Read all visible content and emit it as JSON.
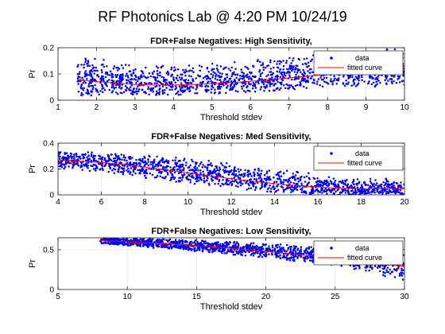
{
  "figure": {
    "title": "RF Photonics Lab @ 4:20 PM 10/24/19",
    "background": "#ffffff",
    "data_color": "#0000ff",
    "fit_color": "#ff0000"
  },
  "chart_data": [
    {
      "type": "scatter",
      "title": "FDR+False Negatives: High Sensitivity,",
      "xlabel": "Threshold stdev",
      "ylabel": "Pr",
      "xlim": [
        1,
        10
      ],
      "ylim": [
        0,
        0.2
      ],
      "xticks": [
        1,
        2,
        3,
        4,
        5,
        6,
        7,
        8,
        9,
        10
      ],
      "yticks": [
        0,
        0.1,
        0.2
      ],
      "grid": true,
      "legend": {
        "placement": "top-right",
        "entries": [
          "data",
          "fitted curve"
        ]
      },
      "series": [
        {
          "name": "data",
          "kind": "points",
          "x_range": [
            1.5,
            10
          ],
          "envelope_x": [
            1.5,
            2,
            3,
            4,
            5,
            6,
            7,
            8,
            9,
            10
          ],
          "low": [
            0.015,
            0.02,
            0.02,
            0.02,
            0.025,
            0.03,
            0.04,
            0.05,
            0.05,
            0.05
          ],
          "high": [
            0.16,
            0.16,
            0.14,
            0.14,
            0.14,
            0.15,
            0.17,
            0.18,
            0.19,
            0.2
          ],
          "center": [
            0.08,
            0.075,
            0.06,
            0.06,
            0.07,
            0.08,
            0.095,
            0.11,
            0.115,
            0.12
          ]
        },
        {
          "name": "fitted curve",
          "kind": "line",
          "x": [
            1.5,
            2,
            2.5,
            3,
            3.5,
            4,
            4.5,
            5,
            5.5,
            6,
            6.5,
            7,
            7.5,
            8,
            8.5,
            9,
            9.5,
            10
          ],
          "y": [
            0.078,
            0.071,
            0.065,
            0.06,
            0.058,
            0.058,
            0.06,
            0.063,
            0.067,
            0.072,
            0.078,
            0.085,
            0.092,
            0.099,
            0.106,
            0.112,
            0.117,
            0.122
          ]
        }
      ]
    },
    {
      "type": "scatter",
      "title": "FDR+False Negatives: Med Sensitivity,",
      "xlabel": "Threshold stdev",
      "ylabel": "Pr",
      "xlim": [
        4,
        20
      ],
      "ylim": [
        0,
        0.4
      ],
      "xticks": [
        4,
        6,
        8,
        10,
        12,
        14,
        16,
        18,
        20
      ],
      "yticks": [
        0,
        0.2,
        0.4
      ],
      "ytick_labels": [
        "0",
        "0.2",
        "0.4"
      ],
      "grid": true,
      "legend": {
        "placement": "top-right",
        "entries": [
          "data",
          "fitted curve"
        ]
      },
      "series": [
        {
          "name": "data",
          "kind": "points",
          "x_range": [
            4,
            20
          ],
          "envelope_x": [
            4,
            6,
            8,
            10,
            12,
            14,
            16,
            18,
            20
          ],
          "low": [
            0.2,
            0.18,
            0.13,
            0.09,
            0.05,
            0.02,
            0.0,
            0.0,
            0.0
          ],
          "high": [
            0.33,
            0.33,
            0.31,
            0.28,
            0.25,
            0.2,
            0.16,
            0.14,
            0.12
          ],
          "center": [
            0.27,
            0.25,
            0.22,
            0.18,
            0.14,
            0.1,
            0.07,
            0.05,
            0.05
          ]
        },
        {
          "name": "fitted curve",
          "kind": "line",
          "x": [
            4,
            5,
            6,
            7,
            8,
            9,
            10,
            11,
            12,
            13,
            14,
            15,
            16,
            17,
            18,
            19,
            20
          ],
          "y": [
            0.265,
            0.26,
            0.25,
            0.235,
            0.215,
            0.193,
            0.17,
            0.147,
            0.125,
            0.105,
            0.087,
            0.072,
            0.06,
            0.052,
            0.048,
            0.048,
            0.052
          ]
        }
      ]
    },
    {
      "type": "scatter",
      "title": "FDR+False Negatives: Low Sensitivity,",
      "xlabel": "Threshold stdev",
      "ylabel": "Pr",
      "xlim": [
        5,
        30
      ],
      "ylim": [
        0,
        0.65
      ],
      "xticks": [
        5,
        10,
        15,
        20,
        25,
        30
      ],
      "yticks": [
        0,
        0.5
      ],
      "grid": true,
      "legend": {
        "placement": "top-right",
        "entries": [
          "data",
          "fitted curve"
        ]
      },
      "series": [
        {
          "name": "data",
          "kind": "points",
          "x_range": [
            8,
            30
          ],
          "envelope_x": [
            8,
            10,
            15,
            20,
            25,
            28,
            30
          ],
          "low": [
            0.57,
            0.55,
            0.48,
            0.4,
            0.3,
            0.2,
            0.05
          ],
          "high": [
            0.65,
            0.65,
            0.62,
            0.58,
            0.52,
            0.5,
            0.48
          ],
          "center": [
            0.61,
            0.6,
            0.55,
            0.49,
            0.41,
            0.35,
            0.3
          ]
        },
        {
          "name": "fitted curve",
          "kind": "line",
          "x": [
            8,
            10,
            12,
            14,
            16,
            18,
            20,
            22,
            24,
            26,
            28,
            30
          ],
          "y": [
            0.615,
            0.6,
            0.583,
            0.562,
            0.538,
            0.511,
            0.48,
            0.446,
            0.41,
            0.372,
            0.331,
            0.29
          ]
        }
      ]
    }
  ]
}
